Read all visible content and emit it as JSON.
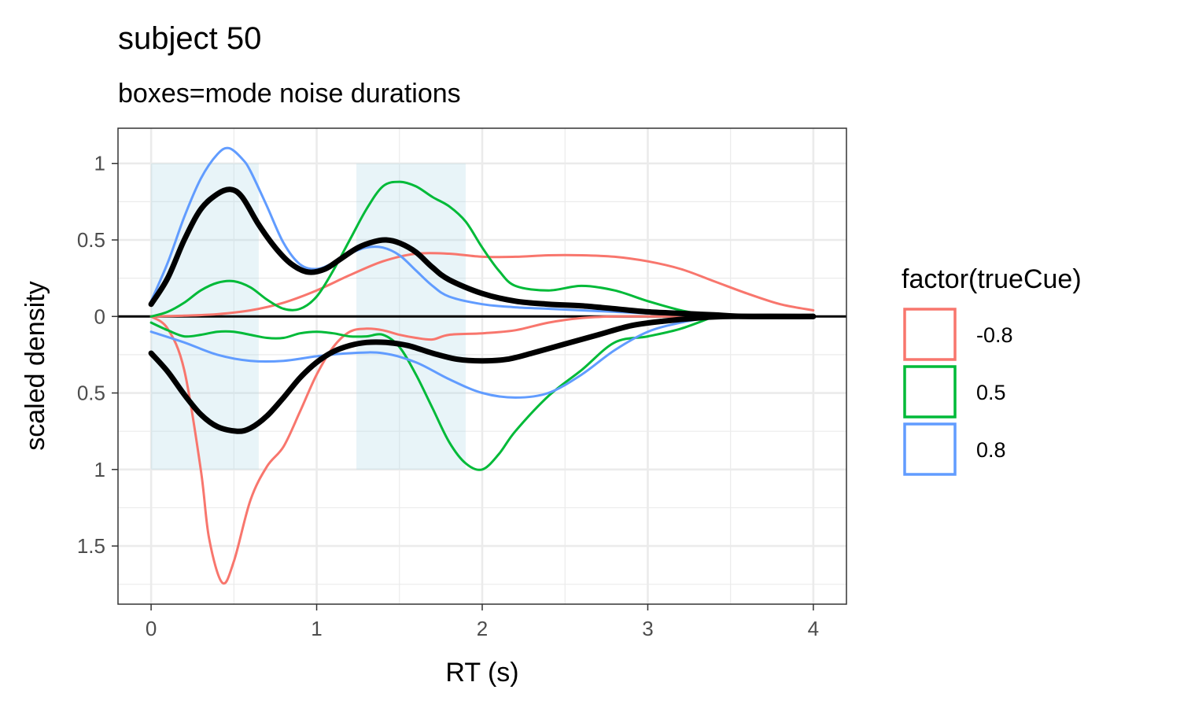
{
  "chart_data": {
    "type": "line",
    "title": "subject 50",
    "subtitle": "boxes=mode noise durations",
    "xlabel": "RT (s)",
    "ylabel": "scaled density",
    "xlim": [
      -0.2,
      4.2
    ],
    "ylim": [
      -1.88,
      1.23
    ],
    "x_ticks": [
      {
        "value": 0,
        "label": "0"
      },
      {
        "value": 1,
        "label": "1"
      },
      {
        "value": 2,
        "label": "2"
      },
      {
        "value": 3,
        "label": "3"
      },
      {
        "value": 4,
        "label": "4"
      }
    ],
    "y_ticks": [
      {
        "value": 1,
        "label": "1"
      },
      {
        "value": 0.5,
        "label": "0.5"
      },
      {
        "value": 0,
        "label": "0"
      },
      {
        "value": -0.5,
        "label": "0.5"
      },
      {
        "value": -1,
        "label": "1"
      },
      {
        "value": -1.5,
        "label": "1.5"
      }
    ],
    "grid": true,
    "boxes": [
      {
        "x0": 0.0,
        "x1": 0.65,
        "y0": -1.0,
        "y1": 1.0
      },
      {
        "x0": 1.24,
        "x1": 1.9,
        "y0": -1.0,
        "y1": 1.0
      }
    ],
    "reference_line_y": 0,
    "legend": {
      "title": "factor(trueCue)",
      "placement": "right",
      "entries": [
        {
          "label": "-0.8",
          "color": "#F8766D"
        },
        {
          "label": "0.5",
          "color": "#00BA38"
        },
        {
          "label": "0.8",
          "color": "#619CFF"
        }
      ]
    },
    "series": [
      {
        "name": "-0.8",
        "color": "#F8766D",
        "part": "upper",
        "x": [
          0,
          0.2,
          0.4,
          0.6,
          0.8,
          1.0,
          1.2,
          1.4,
          1.6,
          1.8,
          2.0,
          2.2,
          2.4,
          2.6,
          2.8,
          3.0,
          3.2,
          3.4,
          3.6,
          3.8,
          4.0
        ],
        "y": [
          0.0,
          0.005,
          0.015,
          0.04,
          0.09,
          0.17,
          0.27,
          0.36,
          0.41,
          0.41,
          0.39,
          0.39,
          0.4,
          0.4,
          0.39,
          0.36,
          0.31,
          0.23,
          0.15,
          0.08,
          0.04
        ]
      },
      {
        "name": "-0.8",
        "color": "#F8766D",
        "part": "lower",
        "x": [
          0,
          0.1,
          0.2,
          0.3,
          0.35,
          0.43,
          0.5,
          0.6,
          0.7,
          0.8,
          0.9,
          1.0,
          1.1,
          1.2,
          1.3,
          1.4,
          1.5,
          1.6,
          1.7,
          1.8,
          2.0,
          2.2,
          2.4,
          2.6,
          2.8,
          3.0,
          3.2,
          3.4,
          4.0
        ],
        "y": [
          0.0,
          -0.08,
          -0.35,
          -1.0,
          -1.45,
          -1.74,
          -1.6,
          -1.2,
          -0.98,
          -0.85,
          -0.62,
          -0.38,
          -0.2,
          -0.1,
          -0.08,
          -0.09,
          -0.12,
          -0.14,
          -0.15,
          -0.12,
          -0.11,
          -0.09,
          -0.04,
          -0.01,
          0.0,
          0.0,
          0.0,
          0.0,
          0.0
        ]
      },
      {
        "name": "0.5",
        "color": "#00BA38",
        "part": "upper",
        "x": [
          0,
          0.1,
          0.2,
          0.3,
          0.4,
          0.5,
          0.6,
          0.7,
          0.8,
          0.9,
          1.0,
          1.1,
          1.2,
          1.3,
          1.4,
          1.5,
          1.6,
          1.7,
          1.8,
          1.9,
          2.0,
          2.1,
          2.2,
          2.4,
          2.6,
          2.8,
          3.0,
          3.2,
          3.4
        ],
        "y": [
          0.0,
          0.03,
          0.09,
          0.17,
          0.22,
          0.23,
          0.19,
          0.11,
          0.05,
          0.05,
          0.13,
          0.3,
          0.5,
          0.7,
          0.85,
          0.88,
          0.85,
          0.78,
          0.72,
          0.62,
          0.45,
          0.3,
          0.2,
          0.17,
          0.2,
          0.17,
          0.1,
          0.04,
          0.0
        ]
      },
      {
        "name": "0.5",
        "color": "#00BA38",
        "part": "lower",
        "x": [
          0,
          0.1,
          0.2,
          0.3,
          0.4,
          0.5,
          0.6,
          0.7,
          0.8,
          0.9,
          1.0,
          1.1,
          1.2,
          1.3,
          1.4,
          1.5,
          1.6,
          1.7,
          1.8,
          1.9,
          2.0,
          2.1,
          2.2,
          2.4,
          2.6,
          2.8,
          3.0,
          3.2,
          3.4
        ],
        "y": [
          -0.04,
          -0.09,
          -0.13,
          -0.12,
          -0.1,
          -0.1,
          -0.12,
          -0.14,
          -0.14,
          -0.11,
          -0.1,
          -0.11,
          -0.13,
          -0.13,
          -0.12,
          -0.2,
          -0.38,
          -0.6,
          -0.82,
          -0.96,
          -1.0,
          -0.9,
          -0.75,
          -0.52,
          -0.35,
          -0.17,
          -0.13,
          -0.08,
          0.0
        ]
      },
      {
        "name": "0.8",
        "color": "#619CFF",
        "part": "upper",
        "x": [
          0,
          0.1,
          0.2,
          0.3,
          0.4,
          0.47,
          0.55,
          0.6,
          0.7,
          0.8,
          0.9,
          1.0,
          1.1,
          1.2,
          1.3,
          1.4,
          1.5,
          1.6,
          1.7,
          1.8,
          2.0,
          2.2,
          2.4,
          2.6,
          2.8,
          3.0,
          3.2,
          3.4
        ],
        "y": [
          0.1,
          0.35,
          0.65,
          0.9,
          1.06,
          1.1,
          1.03,
          0.95,
          0.72,
          0.48,
          0.34,
          0.31,
          0.35,
          0.41,
          0.45,
          0.45,
          0.4,
          0.3,
          0.2,
          0.13,
          0.08,
          0.06,
          0.05,
          0.04,
          0.03,
          0.02,
          0.01,
          0.0
        ]
      },
      {
        "name": "0.8",
        "color": "#619CFF",
        "part": "lower",
        "x": [
          0,
          0.2,
          0.4,
          0.6,
          0.8,
          1.0,
          1.2,
          1.4,
          1.6,
          1.8,
          2.0,
          2.2,
          2.4,
          2.6,
          2.8,
          3.0,
          3.2,
          3.4
        ],
        "y": [
          -0.1,
          -0.17,
          -0.25,
          -0.29,
          -0.29,
          -0.26,
          -0.24,
          -0.24,
          -0.3,
          -0.41,
          -0.5,
          -0.53,
          -0.5,
          -0.38,
          -0.22,
          -0.1,
          -0.04,
          0.0
        ]
      },
      {
        "name": "",
        "color": "#000000",
        "part": "upper-mean",
        "x": [
          0,
          0.1,
          0.2,
          0.3,
          0.4,
          0.48,
          0.55,
          0.65,
          0.75,
          0.85,
          0.95,
          1.05,
          1.15,
          1.25,
          1.35,
          1.42,
          1.5,
          1.6,
          1.7,
          1.8,
          2.0,
          2.2,
          2.4,
          2.6,
          2.8,
          3.0,
          3.2,
          3.4,
          3.6,
          4.0
        ],
        "y": [
          0.08,
          0.25,
          0.5,
          0.7,
          0.8,
          0.83,
          0.78,
          0.6,
          0.45,
          0.34,
          0.29,
          0.31,
          0.38,
          0.45,
          0.49,
          0.5,
          0.48,
          0.42,
          0.32,
          0.24,
          0.15,
          0.1,
          0.08,
          0.07,
          0.05,
          0.03,
          0.02,
          0.01,
          0.0,
          0.0
        ]
      },
      {
        "name": "",
        "color": "#000000",
        "part": "lower-mean",
        "x": [
          0,
          0.1,
          0.2,
          0.3,
          0.4,
          0.52,
          0.6,
          0.7,
          0.8,
          0.9,
          1.0,
          1.1,
          1.2,
          1.3,
          1.42,
          1.55,
          1.7,
          1.85,
          2.0,
          2.15,
          2.3,
          2.5,
          2.7,
          2.9,
          3.1,
          3.3,
          3.5,
          4.0
        ],
        "y": [
          -0.24,
          -0.36,
          -0.51,
          -0.64,
          -0.72,
          -0.75,
          -0.73,
          -0.65,
          -0.53,
          -0.4,
          -0.3,
          -0.23,
          -0.19,
          -0.17,
          -0.17,
          -0.19,
          -0.24,
          -0.28,
          -0.29,
          -0.28,
          -0.24,
          -0.18,
          -0.12,
          -0.06,
          -0.03,
          -0.01,
          0.0,
          0.0
        ]
      }
    ]
  }
}
